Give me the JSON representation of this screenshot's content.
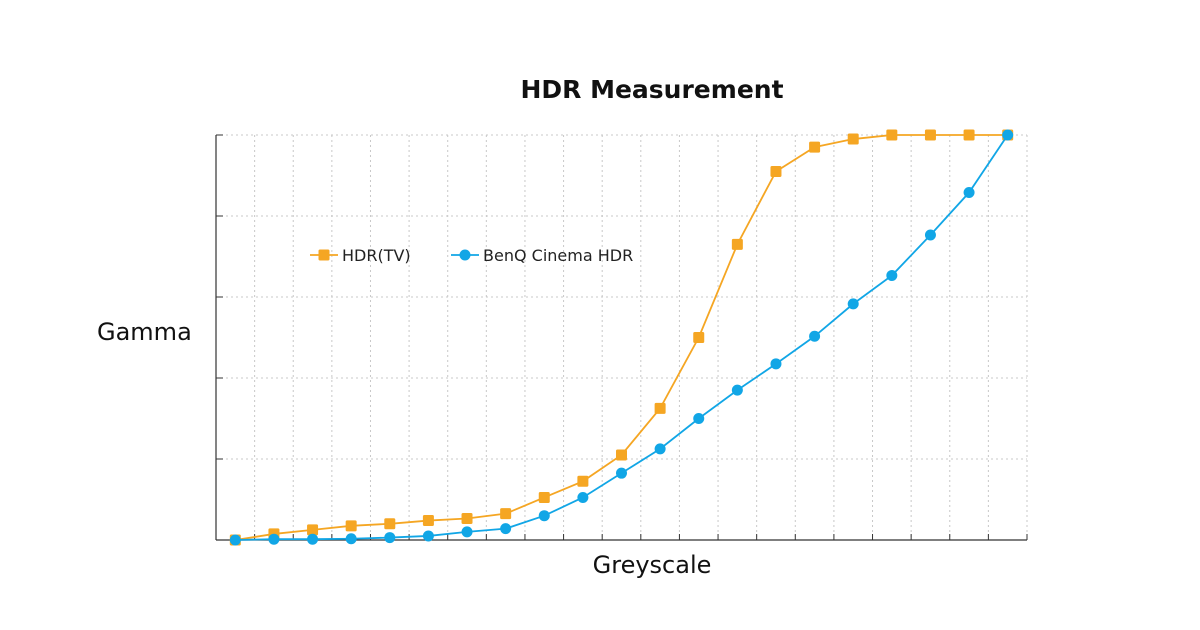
{
  "chart_data": {
    "type": "line",
    "title": "HDR Measurement",
    "xlabel": "Greyscale",
    "ylabel": "Gamma",
    "x": [
      0,
      1,
      2,
      3,
      4,
      5,
      6,
      7,
      8,
      9,
      10,
      11,
      12,
      13,
      14,
      15,
      16,
      17,
      18,
      19,
      20
    ],
    "xlim": [
      -0.5,
      20.5
    ],
    "ylim": [
      0,
      100
    ],
    "y_ticks": [
      0,
      20,
      40,
      60,
      80,
      100
    ],
    "grid": true,
    "tick_labels_shown": false,
    "legend_position": "upper-left",
    "series": [
      {
        "name": "HDR(TV)",
        "color": "#f5a623",
        "marker": "square",
        "values": [
          0,
          1.5,
          2.5,
          3.5,
          4,
          4.8,
          5.3,
          6.5,
          10.5,
          14.5,
          21,
          32.5,
          50,
          73,
          91,
          97,
          99,
          100,
          100,
          100,
          100
        ]
      },
      {
        "name": "BenQ Cinema HDR",
        "color": "#11a6e6",
        "marker": "circle",
        "values": [
          0,
          0.2,
          0.2,
          0.3,
          0.6,
          1,
          2,
          2.8,
          6,
          10.5,
          16.5,
          22.5,
          30,
          37,
          43.5,
          50.3,
          58.3,
          65.3,
          75.3,
          85.8,
          100
        ]
      }
    ]
  }
}
